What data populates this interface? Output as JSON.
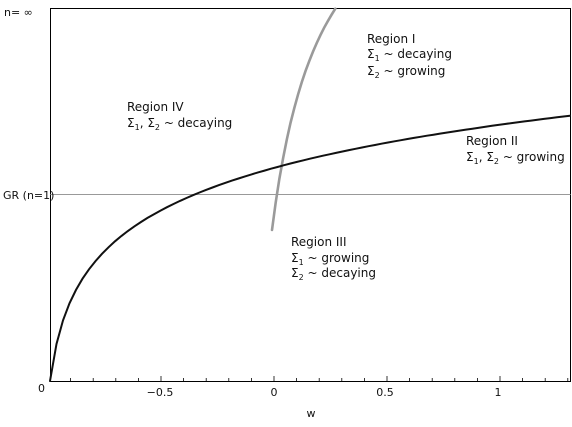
{
  "y_axis": {
    "top_label": "n= ∞",
    "gr_label": "GR (n=1)",
    "zero_label": "0"
  },
  "x_axis": {
    "label": "w",
    "ticks": [
      "−0.5",
      "0",
      "0.5",
      "1"
    ]
  },
  "regions": {
    "region1": {
      "title": "Region I",
      "line1": {
        "prefix": "Σ",
        "sub": "1",
        "rest": " ~ decaying"
      },
      "line2": {
        "prefix": "Σ",
        "sub": "2",
        "rest": " ~ growing"
      }
    },
    "region2": {
      "title": "Region II",
      "line1": {
        "prefix": "Σ",
        "sub1": "1",
        "mid": ", Σ",
        "sub2": "2",
        "rest": " ~ growing"
      }
    },
    "region3": {
      "title": "Region III",
      "line1": {
        "prefix": "Σ",
        "sub": "1",
        "rest": " ~ growing"
      },
      "line2": {
        "prefix": "Σ",
        "sub": "2",
        "rest": " ~ decaying"
      }
    },
    "region4": {
      "title": "Region IV",
      "line1": {
        "prefix": "Σ",
        "sub1": "1",
        "mid": ", Σ",
        "sub2": "2",
        "rest": " ~ decaying"
      }
    }
  },
  "colors": {
    "axis": "#000000",
    "gr_line": "#777777",
    "black_curve": "#111111",
    "gray_curve": "#9a9a9a"
  }
}
